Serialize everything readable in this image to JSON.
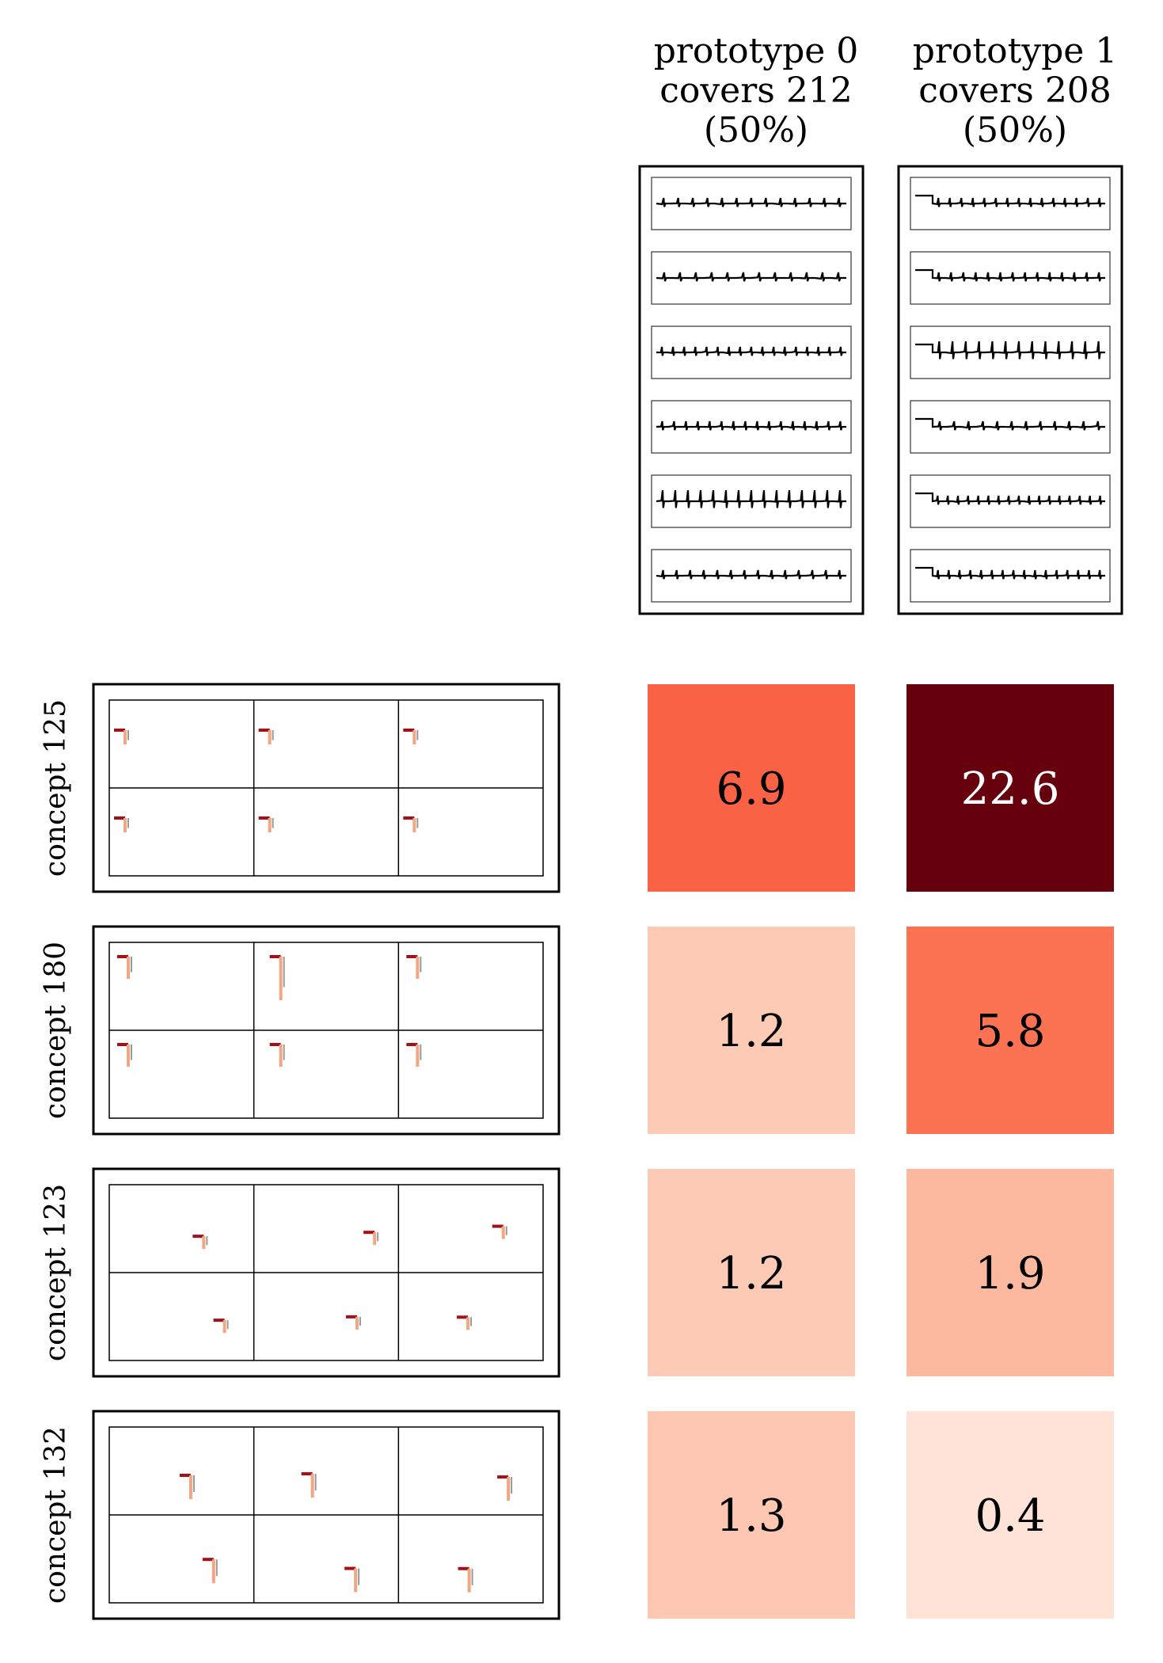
{
  "chart_data": {
    "type": "heatmap",
    "prototypes": [
      {
        "line1": "prototype 0",
        "line2": "covers 212",
        "line3": "(50%)"
      },
      {
        "line1": "prototype 1",
        "line2": "covers 208",
        "line3": "(50%)"
      }
    ],
    "concepts": [
      {
        "label": "concept 125",
        "values": [
          "6.9",
          "22.6"
        ]
      },
      {
        "label": "concept 180",
        "values": [
          "1.2",
          "5.8"
        ]
      },
      {
        "label": "concept 123",
        "values": [
          "1.2",
          "1.9"
        ]
      },
      {
        "label": "concept 132",
        "values": [
          "1.3",
          "0.4"
        ]
      }
    ],
    "value_range": [
      0,
      22.6
    ],
    "colormap": "Reds",
    "colors": {
      "low": "#fff5f0",
      "mid": "#fc9272",
      "high": "#67000d"
    }
  }
}
